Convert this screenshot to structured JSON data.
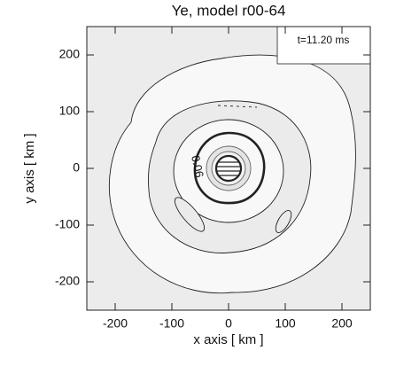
{
  "chart_data": {
    "type": "contour",
    "title": "Ye, model r00-64",
    "x_label": "x axis [ km ]",
    "y_label": "y axis [ km ]",
    "xlim": [
      -250,
      250
    ],
    "ylim": [
      -250,
      250
    ],
    "xticks": [
      -200,
      -100,
      0,
      100,
      200
    ],
    "yticks": [
      -200,
      -100,
      0,
      100,
      200
    ],
    "annotation": "t=11.20 ms",
    "contour_label": 0.06
  }
}
